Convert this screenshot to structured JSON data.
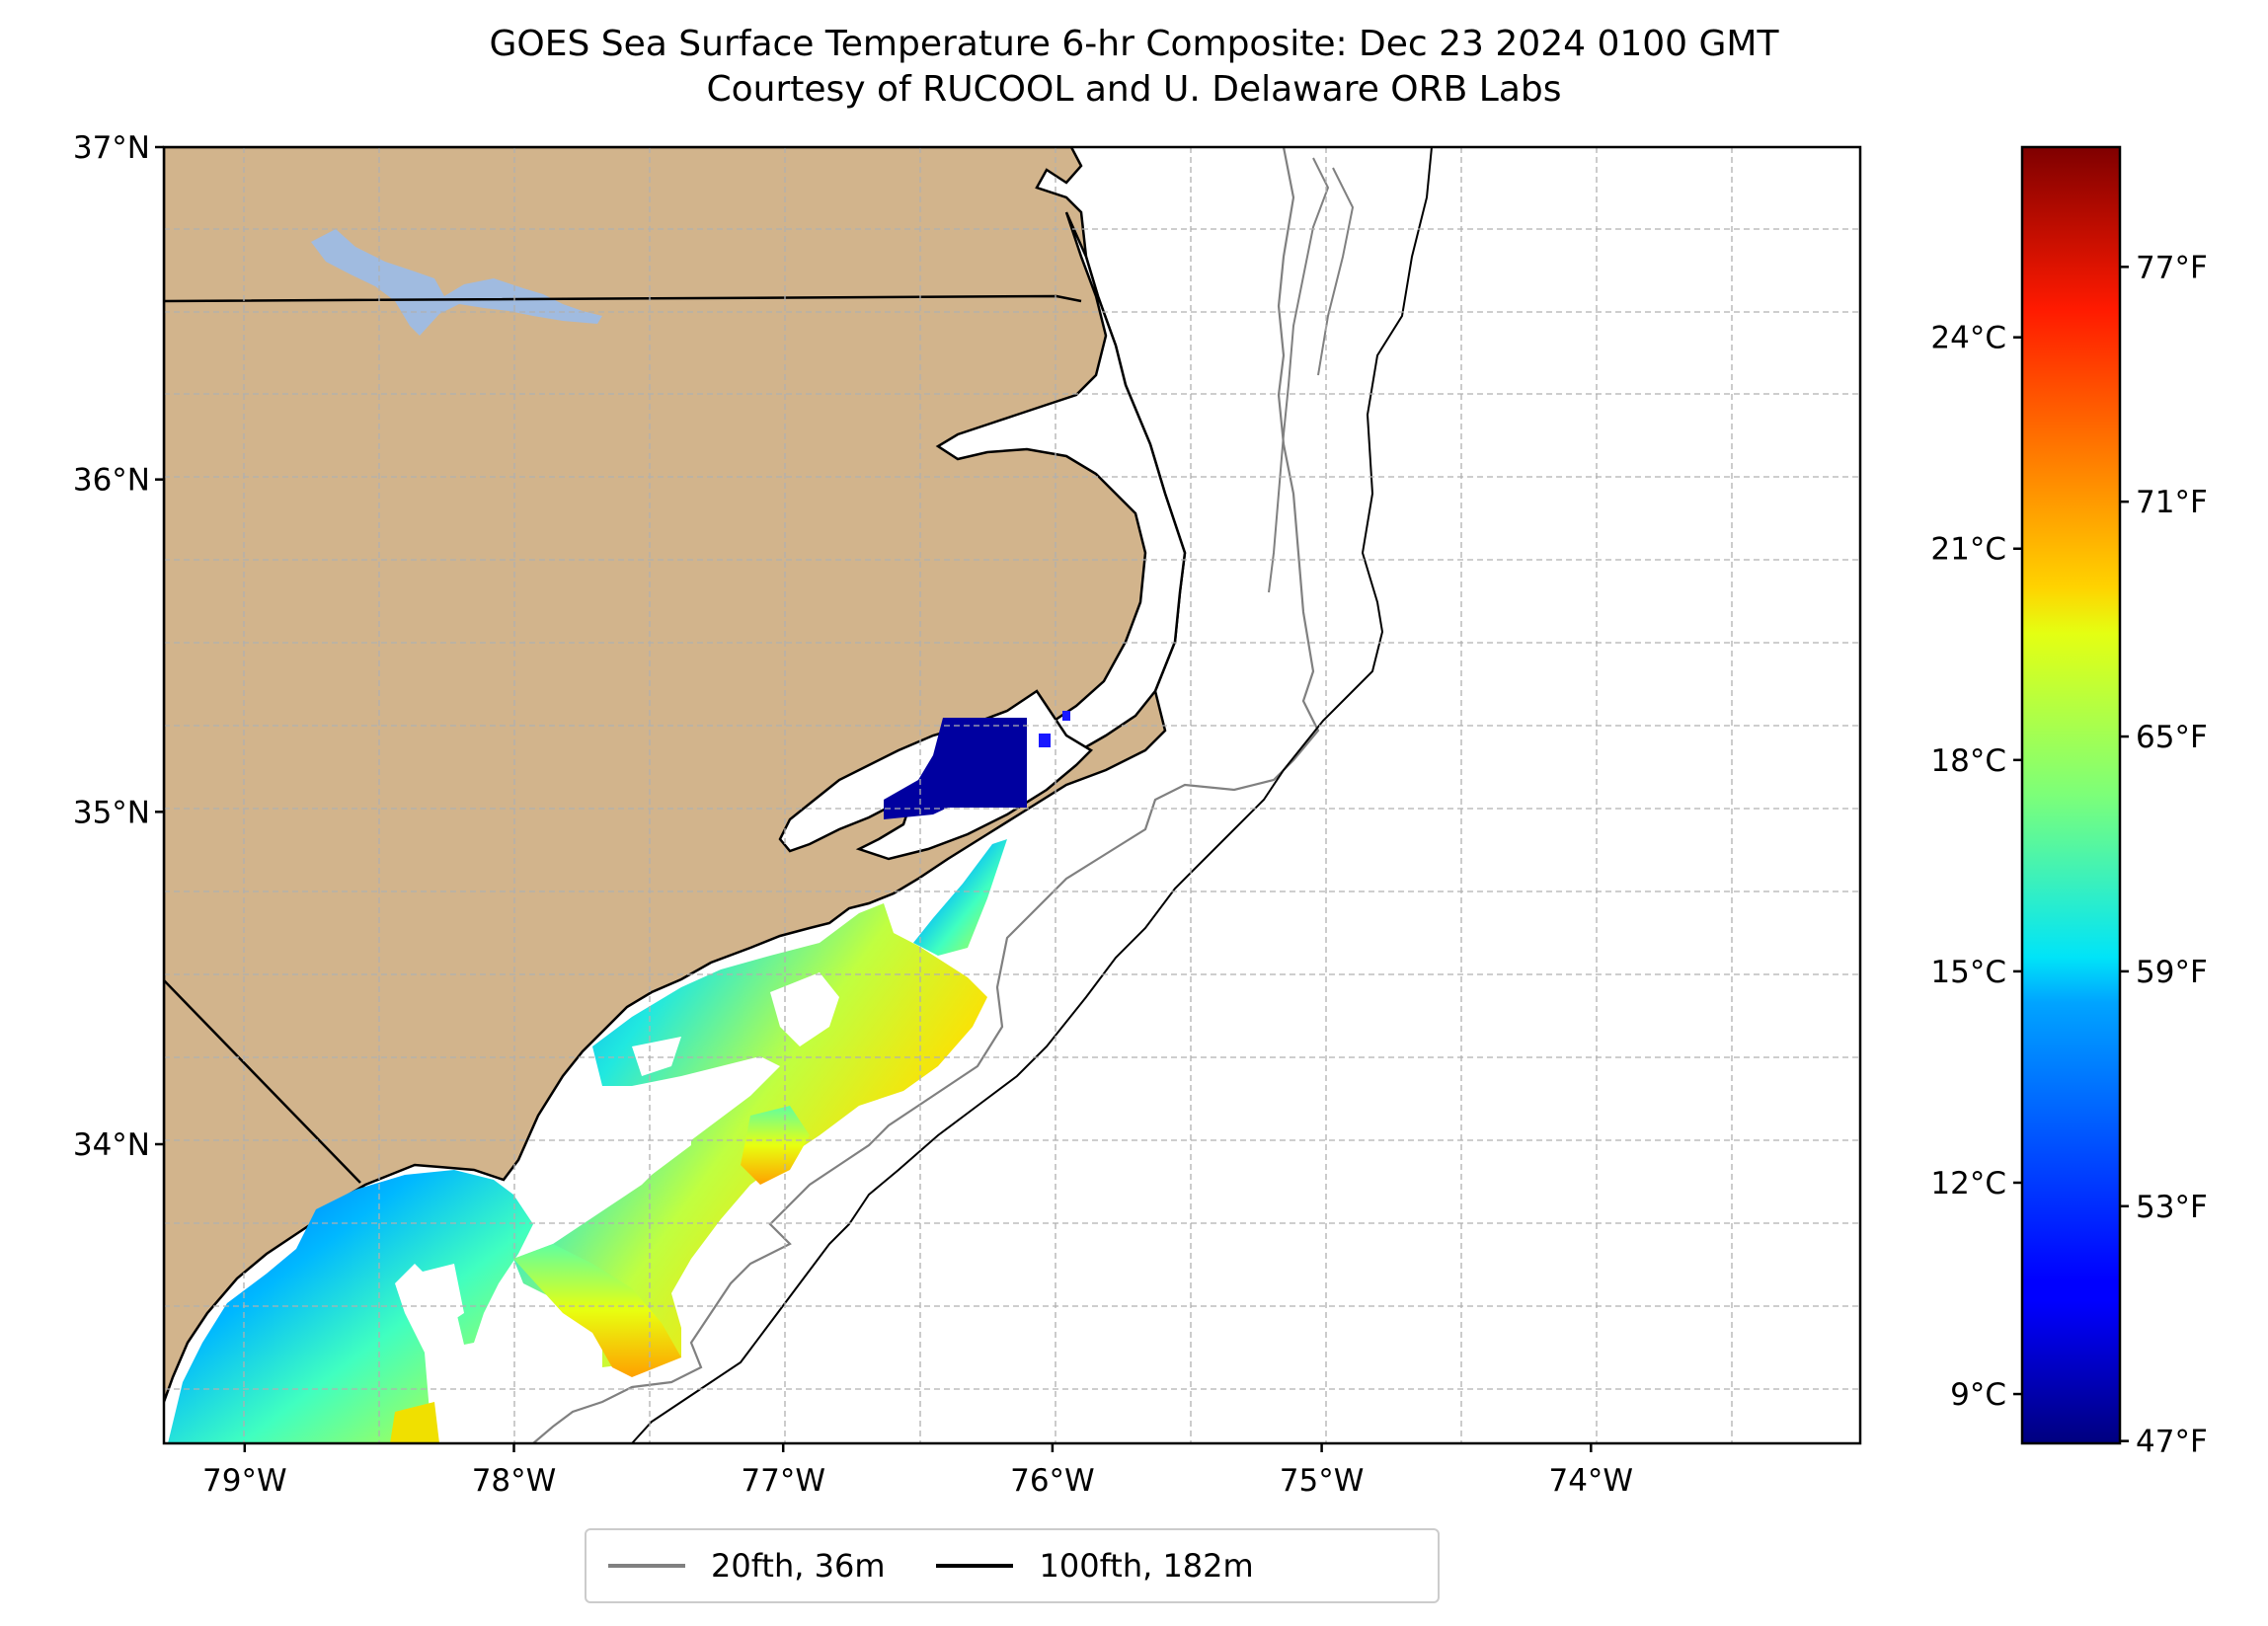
{
  "title": {
    "line1": "GOES Sea Surface Temperature 6-hr Composite: Dec 23 2024 0100 GMT",
    "line2": "Courtesy of RUCOOL and U. Delaware ORB Labs"
  },
  "map": {
    "lat_labels": [
      "37°N",
      "36°N",
      "35°N",
      "34°N"
    ],
    "lon_labels": [
      "79°W",
      "78°W",
      "77°W",
      "76°W",
      "75°W",
      "74°W"
    ],
    "land_color": "#d2b48c",
    "lake_color": "#a0bbe0",
    "extent": {
      "lon_min": -79.3,
      "lon_max": -73.0,
      "lat_min": 33.1,
      "lat_max": 37.0
    }
  },
  "colorbar": {
    "celsius_labels": [
      "24°C",
      "21°C",
      "18°C",
      "15°C",
      "12°C",
      "9°C"
    ],
    "fahrenheit_labels": [
      "77°F",
      "71°F",
      "65°F",
      "59°F",
      "53°F",
      "47°F"
    ],
    "range_c": [
      8.3,
      26.7
    ],
    "colormap": "jet"
  },
  "legend": {
    "items": [
      {
        "label": "20fth, 36m",
        "color": "#808080"
      },
      {
        "label": "100fth, 182m",
        "color": "#000000"
      }
    ]
  }
}
